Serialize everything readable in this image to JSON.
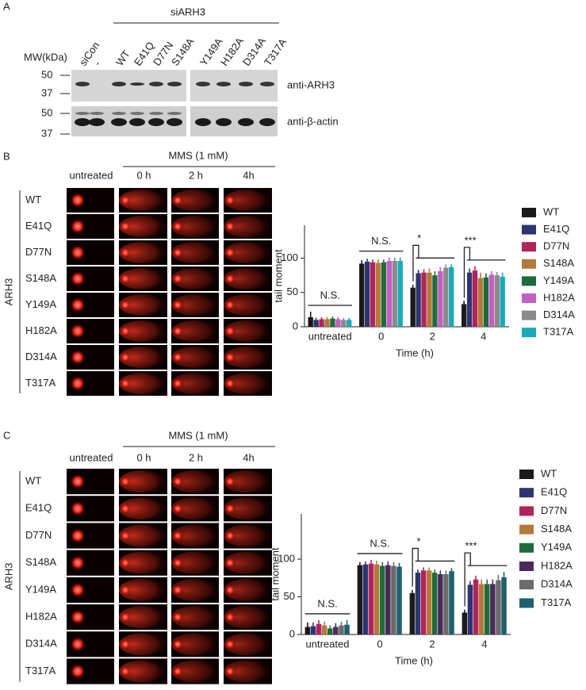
{
  "panel_a": {
    "label": "A",
    "group_label": "siARH3",
    "mw_label": "MW(kDa)",
    "lanes": [
      "siCon",
      "-",
      "WT",
      "E41Q",
      "D77N",
      "S148A",
      "Y149A",
      "H182A",
      "D314A",
      "T317A"
    ],
    "markers_top": [
      "50",
      "37"
    ],
    "markers_bottom": [
      "50",
      "37"
    ],
    "antibodies": [
      "anti-ARH3",
      "anti-β-actin"
    ]
  },
  "panel_b": {
    "label": "B",
    "treatment": "MMS (1 mM)",
    "columns": [
      "untreated",
      "0 h",
      "2 h",
      "4h"
    ],
    "row_group": "ARH3",
    "rows": [
      "WT",
      "E41Q",
      "D77N",
      "S148A",
      "Y149A",
      "H182A",
      "D314A",
      "T317A"
    ]
  },
  "panel_c": {
    "label": "C",
    "treatment": "MMS (1 mM)",
    "columns": [
      "untreated",
      "0 h",
      "2 h",
      "4h"
    ],
    "row_group": "ARH3",
    "rows": [
      "WT",
      "E41Q",
      "D77N",
      "S148A",
      "Y149A",
      "H182A",
      "D314A",
      "T317A"
    ]
  },
  "chart_data": [
    {
      "type": "bar",
      "x_label": "Time (h)",
      "y_label": "tail moment",
      "categories": [
        "untreated",
        "0",
        "2",
        "4"
      ],
      "annotations": [
        "N.S.",
        "N.S.",
        "*",
        "***"
      ],
      "ylim": [
        0,
        148
      ],
      "yticks": [
        0,
        50,
        100
      ],
      "legend": "right",
      "series": [
        {
          "name": "WT",
          "color": "#1a1a1a",
          "values": [
            14,
            92,
            57,
            33
          ],
          "errors": [
            8,
            5,
            4,
            5
          ]
        },
        {
          "name": "E41Q",
          "color": "#2e3470",
          "values": [
            10,
            95,
            78,
            79
          ],
          "errors": [
            3,
            4,
            5,
            6
          ]
        },
        {
          "name": "D77N",
          "color": "#b0245a",
          "values": [
            11,
            94,
            79,
            82
          ],
          "errors": [
            3,
            4,
            5,
            6
          ]
        },
        {
          "name": "S148A",
          "color": "#b07a3a",
          "values": [
            11,
            93,
            79,
            71
          ],
          "errors": [
            3,
            5,
            6,
            8
          ]
        },
        {
          "name": "Y149A",
          "color": "#1f6b3a",
          "values": [
            12,
            94,
            75,
            72
          ],
          "errors": [
            3,
            4,
            6,
            6
          ]
        },
        {
          "name": "H182A",
          "color": "#c45ec4",
          "values": [
            11,
            96,
            81,
            76
          ],
          "errors": [
            3,
            5,
            6,
            5
          ]
        },
        {
          "name": "D314A",
          "color": "#8a8a8a",
          "values": [
            10,
            96,
            86,
            75
          ],
          "errors": [
            3,
            5,
            5,
            5
          ]
        },
        {
          "name": "T317A",
          "color": "#1aa9b8",
          "values": [
            10,
            96,
            87,
            73
          ],
          "errors": [
            3,
            5,
            4,
            6
          ]
        }
      ]
    },
    {
      "type": "bar",
      "x_label": "Time (h)",
      "y_label": "tail moment",
      "categories": [
        "untreated",
        "0",
        "2",
        "4"
      ],
      "annotations": [
        "N.S.",
        "N.S.",
        "*",
        "***"
      ],
      "ylim": [
        0,
        160
      ],
      "yticks": [
        0,
        50,
        100
      ],
      "legend": "right",
      "series": [
        {
          "name": "WT",
          "color": "#1a1a1a",
          "values": [
            10,
            92,
            55,
            29
          ],
          "errors": [
            6,
            4,
            4,
            4
          ]
        },
        {
          "name": "E41Q",
          "color": "#2e3470",
          "values": [
            11,
            93,
            82,
            66
          ],
          "errors": [
            5,
            4,
            4,
            5
          ]
        },
        {
          "name": "D77N",
          "color": "#b0245a",
          "values": [
            14,
            94,
            85,
            73
          ],
          "errors": [
            5,
            5,
            4,
            5
          ]
        },
        {
          "name": "S148A",
          "color": "#b07a3a",
          "values": [
            12,
            93,
            85,
            67
          ],
          "errors": [
            5,
            5,
            4,
            6
          ]
        },
        {
          "name": "Y149A",
          "color": "#1f6b3a",
          "values": [
            8,
            91,
            82,
            67
          ],
          "errors": [
            4,
            5,
            4,
            6
          ]
        },
        {
          "name": "H182A",
          "color": "#4a2a5a",
          "values": [
            10,
            92,
            80,
            67
          ],
          "errors": [
            5,
            5,
            5,
            6
          ]
        },
        {
          "name": "D314A",
          "color": "#6b6b6b",
          "values": [
            12,
            91,
            80,
            72
          ],
          "errors": [
            5,
            5,
            5,
            7
          ]
        },
        {
          "name": "T317A",
          "color": "#1f5f6e",
          "values": [
            13,
            90,
            84,
            76
          ],
          "errors": [
            6,
            5,
            4,
            7
          ]
        }
      ]
    }
  ]
}
